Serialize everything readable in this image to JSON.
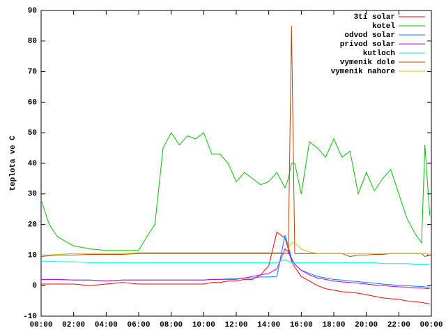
{
  "chart_data": {
    "type": "line",
    "y_label": "teplota ve C",
    "x": [
      0,
      0.5,
      1,
      2,
      3,
      4,
      5,
      6,
      6.5,
      7,
      7.5,
      8,
      8.5,
      9,
      9.5,
      10,
      10.5,
      11,
      11.5,
      12,
      12.5,
      13,
      13.5,
      14,
      14.5,
      15,
      15.2,
      15.4,
      15.6,
      16,
      16.5,
      17,
      17.5,
      18,
      18.5,
      19,
      19.5,
      20,
      20.5,
      21,
      21.5,
      22,
      22.5,
      23,
      23.4,
      23.6,
      23.9
    ],
    "xlim": [
      0,
      24
    ],
    "xticks": [
      {
        "value": 0,
        "label": "00:00"
      },
      {
        "value": 2,
        "label": "02:00"
      },
      {
        "value": 4,
        "label": "04:00"
      },
      {
        "value": 6,
        "label": "06:00"
      },
      {
        "value": 8,
        "label": "08:00"
      },
      {
        "value": 10,
        "label": "10:00"
      },
      {
        "value": 12,
        "label": "12:00"
      },
      {
        "value": 14,
        "label": "14:00"
      },
      {
        "value": 16,
        "label": "16:00"
      },
      {
        "value": 18,
        "label": "18:00"
      },
      {
        "value": 20,
        "label": "20:00"
      },
      {
        "value": 22,
        "label": "22:00"
      },
      {
        "value": 24,
        "label": "00:00"
      }
    ],
    "ylim": [
      -10,
      90
    ],
    "yticks": [
      -10,
      0,
      10,
      20,
      30,
      40,
      50,
      60,
      70,
      80,
      90
    ],
    "series": [
      {
        "name": "3ti solar",
        "color": "#ff0000",
        "values": [
          0.5,
          0.5,
          0.5,
          0.5,
          0,
          0.5,
          1,
          0.5,
          0.5,
          0.5,
          0.5,
          0.5,
          0.5,
          0.5,
          0.5,
          0.5,
          1,
          1,
          1.5,
          1.5,
          2,
          2,
          3.5,
          6.5,
          17.5,
          15.5,
          12,
          8,
          6,
          3,
          1.5,
          0,
          -1,
          -1.5,
          -2,
          -2.2,
          -2.5,
          -3,
          -3.5,
          -4,
          -4.3,
          -4.5,
          -5,
          -5.3,
          -5.5,
          -5.7,
          -6
        ]
      },
      {
        "name": "kotel",
        "color": "#00c000",
        "values": [
          28,
          20,
          16,
          13,
          12,
          11.5,
          11.5,
          11.5,
          16,
          20,
          45,
          50,
          46,
          49,
          48,
          50,
          43,
          43,
          40,
          34,
          37,
          35,
          33,
          34,
          37,
          32,
          35,
          40,
          40,
          30,
          47,
          45,
          42,
          48,
          42,
          44,
          30,
          37,
          31,
          35,
          38,
          30,
          22,
          17,
          14,
          46,
          23
        ]
      },
      {
        "name": "odvod solar",
        "color": "#0080ff",
        "values": [
          2,
          2,
          2,
          1.8,
          1.8,
          1.5,
          1.8,
          1.8,
          1.8,
          1.8,
          1.8,
          1.8,
          1.8,
          1.8,
          1.8,
          1.8,
          2,
          2,
          2,
          2,
          2.5,
          2.5,
          2.8,
          2.8,
          3,
          16.5,
          13,
          9,
          7,
          5,
          4,
          3,
          2.5,
          2,
          1.8,
          1.5,
          1.3,
          1,
          0.8,
          0.5,
          0.3,
          0,
          0,
          -0.2,
          -0.3,
          -0.4,
          -0.5
        ]
      },
      {
        "name": "privod solar",
        "color": "#c000ff",
        "values": [
          2,
          2,
          2,
          1.8,
          1.8,
          1.5,
          1.8,
          1.8,
          1.8,
          1.8,
          1.8,
          1.8,
          1.8,
          1.8,
          1.8,
          1.8,
          2,
          2,
          2.2,
          2.2,
          2.5,
          3,
          3.5,
          4,
          5.5,
          12,
          11,
          8.5,
          7,
          5,
          3.5,
          2.5,
          2,
          1.5,
          1.2,
          1,
          0.8,
          0.5,
          0.2,
          0,
          -0.2,
          -0.4,
          -0.5,
          -0.7,
          -0.8,
          -0.9,
          -1
        ]
      },
      {
        "name": "kutloch",
        "color": "#00eeee",
        "values": [
          8,
          8,
          7.8,
          7.8,
          7.5,
          7.5,
          7.5,
          7.5,
          7.5,
          7.5,
          7.5,
          7.5,
          7.5,
          7.5,
          7.5,
          7.5,
          7.5,
          7.5,
          7.5,
          7.5,
          7.5,
          7.5,
          7.5,
          7.5,
          7.5,
          8.5,
          8,
          7.5,
          7.5,
          7.5,
          7.5,
          7.5,
          7.5,
          7.5,
          7.5,
          7.5,
          7.5,
          7.5,
          7.5,
          7.2,
          7.2,
          7.2,
          7.2,
          7,
          7,
          7,
          7
        ]
      },
      {
        "name": "vymenik dole",
        "color": "#c04000",
        "values": [
          9.5,
          9.8,
          10,
          10,
          10.2,
          10.2,
          10.2,
          10.5,
          10.5,
          10.5,
          10.5,
          10.5,
          10.5,
          10.5,
          10.5,
          10.5,
          10.5,
          10.5,
          10.5,
          10.5,
          10.5,
          10.5,
          10.5,
          10.5,
          10.5,
          10.5,
          10.5,
          85,
          10.5,
          10.5,
          10.5,
          10.5,
          10.5,
          10.5,
          10.5,
          9.5,
          10,
          10,
          10.2,
          10.2,
          10.5,
          10.5,
          10.5,
          10.5,
          10.5,
          9.5,
          10
        ]
      },
      {
        "name": "vymenik nahore",
        "color": "#c8c800",
        "values": [
          10,
          10,
          10.2,
          10.5,
          10.5,
          10.5,
          10.5,
          10.8,
          10.8,
          10.8,
          10.8,
          10.8,
          10.8,
          10.8,
          10.8,
          10.8,
          10.8,
          10.8,
          10.8,
          10.8,
          10.8,
          10.8,
          10.8,
          10.8,
          10.8,
          11,
          12,
          14,
          14,
          12,
          11,
          10.5,
          10.5,
          10.5,
          10.5,
          10.5,
          10.5,
          10.5,
          10.5,
          10.5,
          10.5,
          10.5,
          10.5,
          10.5,
          10.5,
          10.5,
          10.5
        ]
      }
    ]
  }
}
